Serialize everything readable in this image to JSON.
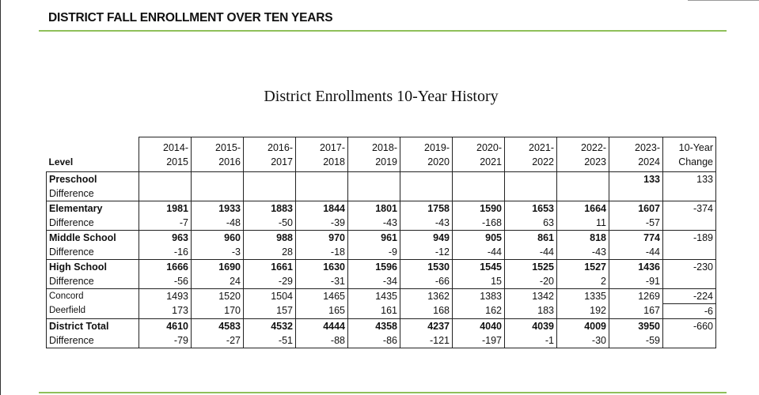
{
  "document": {
    "title": "DISTRICT FALL ENROLLMENT OVER TEN YEARS",
    "accent_color": "#8fbf5a"
  },
  "table": {
    "title": "District Enrollments 10-Year History",
    "level_header": "Level",
    "years": [
      [
        "2014-",
        "2015"
      ],
      [
        "2015-",
        "2016"
      ],
      [
        "2016-",
        "2017"
      ],
      [
        "2017-",
        "2018"
      ],
      [
        "2018-",
        "2019"
      ],
      [
        "2019-",
        "2020"
      ],
      [
        "2020-",
        "2021"
      ],
      [
        "2021-",
        "2022"
      ],
      [
        "2022-",
        "2023"
      ],
      [
        "2023-",
        "2024"
      ]
    ],
    "change_header": [
      "10-Year",
      "Change"
    ],
    "groups": [
      {
        "label": "Preschool",
        "sub_label": "Difference",
        "bold": true,
        "values": [
          "",
          "",
          "",
          "",
          "",
          "",
          "",
          "",
          "",
          "133"
        ],
        "diffs": [
          "",
          "",
          "",
          "",
          "",
          "",
          "",
          "",
          "",
          ""
        ],
        "change": "133"
      },
      {
        "label": "Elementary",
        "sub_label": "Difference",
        "bold": true,
        "values": [
          "1981",
          "1933",
          "1883",
          "1844",
          "1801",
          "1758",
          "1590",
          "1653",
          "1664",
          "1607"
        ],
        "diffs": [
          "-7",
          "-48",
          "-50",
          "-39",
          "-43",
          "-43",
          "-168",
          "63",
          "11",
          "-57"
        ],
        "change": "-374"
      },
      {
        "label": "Middle School",
        "sub_label": "Difference",
        "bold": true,
        "values": [
          "963",
          "960",
          "988",
          "970",
          "961",
          "949",
          "905",
          "861",
          "818",
          "774"
        ],
        "diffs": [
          "-16",
          "-3",
          "28",
          "-18",
          "-9",
          "-12",
          "-44",
          "-44",
          "-43",
          "-44"
        ],
        "change": "-189"
      },
      {
        "label": "High School",
        "sub_label": "Difference",
        "bold": true,
        "values": [
          "1666",
          "1690",
          "1661",
          "1630",
          "1596",
          "1530",
          "1545",
          "1525",
          "1527",
          "1436"
        ],
        "diffs": [
          "-56",
          "24",
          "-29",
          "-31",
          "-34",
          "-66",
          "15",
          "-20",
          "2",
          "-91"
        ],
        "change": "-230"
      },
      {
        "label": "Concord",
        "sub_label": "Deerfield",
        "bold": false,
        "values": [
          "1493",
          "1520",
          "1504",
          "1465",
          "1435",
          "1362",
          "1383",
          "1342",
          "1335",
          "1269"
        ],
        "diffs": [
          "173",
          "170",
          "157",
          "165",
          "161",
          "168",
          "162",
          "183",
          "192",
          "167"
        ],
        "change": "-224",
        "change2": "-6"
      },
      {
        "label": "District Total",
        "sub_label": "Difference",
        "bold": true,
        "values": [
          "4610",
          "4583",
          "4532",
          "4444",
          "4358",
          "4237",
          "4040",
          "4039",
          "4009",
          "3950"
        ],
        "diffs": [
          "-79",
          "-27",
          "-51",
          "-88",
          "-86",
          "-121",
          "-197",
          "-1",
          "-30",
          "-59"
        ],
        "change": "-660"
      }
    ]
  }
}
